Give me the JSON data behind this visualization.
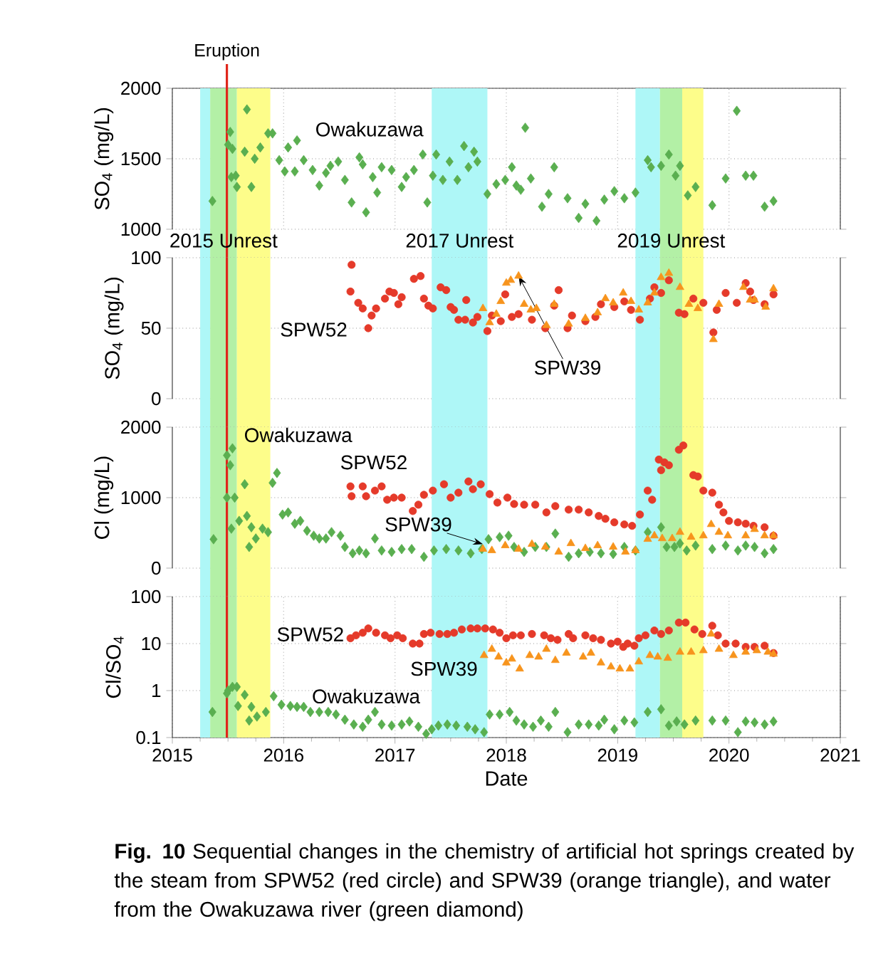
{
  "chart_data": [
    {
      "type": "scatter",
      "ylabel": "SO$_{4}$ (mg/L)",
      "xlim": [
        2015,
        2021
      ],
      "xticks": [
        2015,
        2016,
        2017,
        2018,
        2019,
        2020,
        2021
      ],
      "ylim": [
        1000,
        2000
      ],
      "yticks": [
        1000,
        1500,
        2000
      ],
      "grid": true,
      "tick_labels": "y",
      "bands": [
        {
          "axis": "x",
          "from": 2015.25,
          "to": 2015.34,
          "color": "#aef7f7"
        },
        {
          "axis": "x",
          "from": 2015.34,
          "to": 2015.58,
          "color": "#b3f0a6"
        },
        {
          "axis": "x",
          "from": 2015.58,
          "to": 2015.88,
          "color": "#fdfd8a"
        },
        {
          "axis": "x",
          "from": 2017.33,
          "to": 2017.83,
          "color": "#aef7f7"
        },
        {
          "axis": "x",
          "from": 2019.16,
          "to": 2019.38,
          "color": "#aef7f7"
        },
        {
          "axis": "x",
          "from": 2019.38,
          "to": 2019.58,
          "color": "#b3f0a6"
        },
        {
          "axis": "x",
          "from": 2019.58,
          "to": 2019.77,
          "color": "#fdfd8a"
        }
      ],
      "ref_lines": [
        {
          "axis": "x",
          "value": 2015.49,
          "label": "Eruption",
          "color": "#e0261b"
        }
      ],
      "series": [
        {
          "name": "Owakuzawa",
          "color": "#5aaf50",
          "marker": "diamond",
          "x": [
            2015.36,
            2015.52,
            2015.5,
            2015.54,
            2015.53,
            2015.58,
            2015.57,
            2015.67,
            2015.65,
            2015.74,
            2015.71,
            2015.79,
            2015.86,
            2015.9,
            2015.96,
            2016.01,
            2016.04,
            2016.12,
            2016.1,
            2016.18,
            2016.26,
            2016.32,
            2016.38,
            2016.42,
            2016.49,
            2016.55,
            2016.61,
            2016.68,
            2016.71,
            2016.74,
            2016.8,
            2016.84,
            2016.88,
            2016.97,
            2017.06,
            2017.1,
            2017.17,
            2017.25,
            2017.29,
            2017.34,
            2017.37,
            2017.43,
            2017.49,
            2017.56,
            2017.62,
            2017.66,
            2017.71,
            2017.74,
            2017.83,
            2017.91,
            2017.99,
            2018.05,
            2018.09,
            2018.17,
            2018.13,
            2018.22,
            2018.32,
            2018.38,
            2018.43,
            2018.55,
            2018.65,
            2018.71,
            2018.81,
            2018.88,
            2018.97,
            2019.06,
            2019.16,
            2019.27,
            2019.3,
            2019.39,
            2019.46,
            2019.52,
            2019.56,
            2019.63,
            2019.7,
            2019.85,
            2019.97,
            2020.07,
            2020.15,
            2020.22,
            2020.32,
            2020.4
          ],
          "values": [
            1200,
            1690,
            1600,
            1570,
            1370,
            1300,
            1380,
            1850,
            1550,
            1500,
            1300,
            1580,
            1680,
            1680,
            1490,
            1410,
            1580,
            1630,
            1410,
            1490,
            1420,
            1310,
            1400,
            1450,
            1480,
            1350,
            1190,
            1510,
            1460,
            1120,
            1370,
            1260,
            1440,
            1420,
            1300,
            1370,
            1420,
            1530,
            1190,
            1380,
            1530,
            1350,
            1480,
            1350,
            1590,
            1440,
            1550,
            1480,
            1250,
            1320,
            1350,
            1440,
            1310,
            1720,
            1280,
            1360,
            1160,
            1250,
            1440,
            1220,
            1080,
            1180,
            1060,
            1210,
            1270,
            1220,
            1260,
            1490,
            1440,
            1450,
            1530,
            1380,
            1450,
            1240,
            1300,
            1170,
            1360,
            1840,
            1380,
            1380,
            1160,
            1200
          ]
        }
      ]
    },
    {
      "type": "scatter",
      "ylabel": "SO$_{4}$ (mg/L)",
      "xlim": [
        2015,
        2021
      ],
      "xticks": [
        2015,
        2016,
        2017,
        2018,
        2019,
        2020,
        2021
      ],
      "ylim": [
        0,
        100
      ],
      "yticks": [
        0,
        50,
        100
      ],
      "grid": true,
      "tick_labels": "y",
      "bands": [
        {
          "axis": "x",
          "from": 2015.25,
          "to": 2015.34,
          "color": "#aef7f7"
        },
        {
          "axis": "x",
          "from": 2015.34,
          "to": 2015.58,
          "color": "#b3f0a6",
          "label": "2015 Unrest"
        },
        {
          "axis": "x",
          "from": 2015.58,
          "to": 2015.88,
          "color": "#fdfd8a"
        },
        {
          "axis": "x",
          "from": 2017.33,
          "to": 2017.83,
          "color": "#aef7f7",
          "label": "2017 Unrest"
        },
        {
          "axis": "x",
          "from": 2019.16,
          "to": 2019.38,
          "color": "#aef7f7"
        },
        {
          "axis": "x",
          "from": 2019.38,
          "to": 2019.58,
          "color": "#b3f0a6",
          "label": "2019 Unrest"
        },
        {
          "axis": "x",
          "from": 2019.58,
          "to": 2019.77,
          "color": "#fdfd8a"
        }
      ],
      "ref_lines": [
        {
          "axis": "x",
          "value": 2015.49,
          "color": "#e0261b"
        }
      ],
      "series": [
        {
          "name": "SPW52",
          "color": "#e53a2a",
          "marker": "circle",
          "x": [
            2016.61,
            2016.6,
            2016.67,
            2016.71,
            2016.76,
            2016.79,
            2016.83,
            2016.91,
            2016.95,
            2016.99,
            2017.03,
            2017.06,
            2017.17,
            2017.23,
            2017.26,
            2017.3,
            2017.34,
            2017.41,
            2017.46,
            2017.5,
            2017.53,
            2017.57,
            2017.64,
            2017.63,
            2017.7,
            2017.74,
            2017.83,
            2017.87,
            2017.95,
            2017.99,
            2018.05,
            2018.11,
            2018.23,
            2018.35,
            2018.43,
            2018.47,
            2018.55,
            2018.59,
            2018.71,
            2018.8,
            2018.85,
            2018.97,
            2019.06,
            2019.12,
            2019.2,
            2019.29,
            2019.33,
            2019.39,
            2019.46,
            2019.55,
            2019.6,
            2019.68,
            2019.77,
            2019.86,
            2019.89,
            2019.97,
            2020.07,
            2020.15,
            2020.19,
            2020.22,
            2020.32,
            2020.4
          ],
          "values": [
            95,
            76,
            68,
            64,
            50,
            59,
            64,
            71,
            76,
            75,
            67,
            72,
            85,
            87,
            71,
            66,
            64,
            79,
            77,
            65,
            63,
            56,
            70,
            56,
            54,
            58,
            48,
            59,
            55,
            74,
            58,
            60,
            56,
            50,
            66,
            77,
            50,
            59,
            55,
            58,
            67,
            65,
            69,
            63,
            56,
            71,
            79,
            75,
            84,
            61,
            60,
            71,
            68,
            47,
            63,
            75,
            68,
            82,
            76,
            70,
            67,
            74
          ]
        },
        {
          "name": "SPW39",
          "color": "#f7941d",
          "marker": "triangle",
          "x": [
            2017.79,
            2017.85,
            2017.91,
            2017.95,
            2018.0,
            2018.04,
            2018.11,
            2018.16,
            2018.22,
            2018.27,
            2018.36,
            2018.43,
            2018.56,
            2018.71,
            2018.82,
            2018.89,
            2018.96,
            2019.05,
            2019.12,
            2019.19,
            2019.27,
            2019.33,
            2019.39,
            2019.46,
            2019.56,
            2019.64,
            2019.72,
            2019.86,
            2019.91,
            2020.13,
            2020.19,
            2020.23,
            2020.33,
            2020.4
          ],
          "values": [
            64,
            54,
            60,
            69,
            82,
            84,
            87,
            67,
            63,
            64,
            52,
            67,
            53,
            57,
            61,
            71,
            68,
            75,
            69,
            63,
            68,
            75,
            86,
            89,
            79,
            67,
            64,
            42,
            67,
            79,
            70,
            70,
            65,
            78
          ]
        }
      ]
    },
    {
      "type": "scatter",
      "ylabel": "Cl (mg/L)",
      "xlim": [
        2015,
        2021
      ],
      "xticks": [
        2015,
        2016,
        2017,
        2018,
        2019,
        2020,
        2021
      ],
      "ylim": [
        0,
        2000
      ],
      "yticks": [
        0,
        1000,
        2000
      ],
      "grid": true,
      "tick_labels": "y",
      "bands": [
        {
          "axis": "x",
          "from": 2015.25,
          "to": 2015.34,
          "color": "#aef7f7"
        },
        {
          "axis": "x",
          "from": 2015.34,
          "to": 2015.58,
          "color": "#b3f0a6"
        },
        {
          "axis": "x",
          "from": 2015.58,
          "to": 2015.88,
          "color": "#fdfd8a"
        },
        {
          "axis": "x",
          "from": 2017.33,
          "to": 2017.83,
          "color": "#aef7f7"
        },
        {
          "axis": "x",
          "from": 2019.16,
          "to": 2019.38,
          "color": "#aef7f7"
        },
        {
          "axis": "x",
          "from": 2019.38,
          "to": 2019.58,
          "color": "#b3f0a6"
        },
        {
          "axis": "x",
          "from": 2019.58,
          "to": 2019.77,
          "color": "#fdfd8a"
        }
      ],
      "ref_lines": [
        {
          "axis": "x",
          "value": 2015.49,
          "color": "#e0261b"
        }
      ],
      "series": [
        {
          "name": "Owakuzawa",
          "color": "#5aaf50",
          "marker": "diamond",
          "x": [
            2015.37,
            2015.49,
            2015.52,
            2015.54,
            2015.49,
            2015.56,
            2015.53,
            2015.6,
            2015.65,
            2015.67,
            2015.71,
            2015.69,
            2015.75,
            2015.81,
            2015.86,
            2015.9,
            2015.94,
            2015.99,
            2016.04,
            2016.1,
            2016.15,
            2016.21,
            2016.27,
            2016.32,
            2016.38,
            2016.43,
            2016.51,
            2016.55,
            2016.62,
            2016.68,
            2016.74,
            2016.82,
            2016.88,
            2016.97,
            2017.06,
            2017.15,
            2017.26,
            2017.35,
            2017.46,
            2017.57,
            2017.68,
            2017.78,
            2017.84,
            2017.94,
            2018.02,
            2018.07,
            2018.16,
            2018.26,
            2018.36,
            2018.44,
            2018.56,
            2018.65,
            2018.75,
            2018.85,
            2018.96,
            2019.06,
            2019.16,
            2019.27,
            2019.39,
            2019.44,
            2019.51,
            2019.56,
            2019.62,
            2019.7,
            2019.85,
            2019.97,
            2020.08,
            2020.15,
            2020.23,
            2020.32,
            2020.4
          ],
          "values": [
            410,
            1600,
            1460,
            1700,
            1000,
            1000,
            560,
            670,
            1190,
            740,
            580,
            300,
            420,
            560,
            510,
            1210,
            1350,
            760,
            790,
            630,
            670,
            530,
            460,
            420,
            420,
            510,
            460,
            300,
            210,
            250,
            210,
            420,
            250,
            230,
            270,
            270,
            160,
            250,
            270,
            250,
            210,
            270,
            410,
            440,
            460,
            300,
            230,
            300,
            300,
            490,
            160,
            210,
            230,
            210,
            200,
            300,
            250,
            510,
            580,
            300,
            300,
            350,
            250,
            320,
            270,
            320,
            250,
            320,
            300,
            210,
            270
          ]
        },
        {
          "name": "SPW52",
          "color": "#e53a2a",
          "marker": "circle",
          "x": [
            2016.6,
            2016.61,
            2016.71,
            2016.74,
            2016.82,
            2016.88,
            2016.93,
            2016.99,
            2017.06,
            2017.16,
            2017.21,
            2017.26,
            2017.34,
            2017.44,
            2017.5,
            2017.57,
            2017.66,
            2017.7,
            2017.77,
            2017.85,
            2017.92,
            2018.01,
            2018.07,
            2018.16,
            2018.26,
            2018.36,
            2018.44,
            2018.56,
            2018.65,
            2018.74,
            2018.83,
            2018.89,
            2018.97,
            2019.06,
            2019.13,
            2019.2,
            2019.27,
            2019.31,
            2019.37,
            2019.39,
            2019.42,
            2019.46,
            2019.55,
            2019.59,
            2019.68,
            2019.72,
            2019.77,
            2019.85,
            2019.91,
            2019.95,
            2020.0,
            2020.08,
            2020.15,
            2020.22,
            2020.32,
            2020.4
          ],
          "values": [
            1160,
            1020,
            1160,
            1020,
            1100,
            1160,
            970,
            1000,
            1000,
            810,
            900,
            1040,
            1100,
            1190,
            1000,
            1070,
            1230,
            1120,
            1190,
            1050,
            930,
            1000,
            910,
            900,
            900,
            790,
            880,
            830,
            830,
            790,
            740,
            700,
            650,
            620,
            600,
            760,
            1100,
            970,
            1540,
            1390,
            1500,
            1460,
            1680,
            1740,
            1320,
            1300,
            1100,
            1070,
            900,
            790,
            670,
            650,
            630,
            600,
            580,
            460
          ]
        },
        {
          "name": "SPW39",
          "color": "#f7941d",
          "marker": "triangle",
          "x": [
            2017.79,
            2017.87,
            2017.99,
            2018.11,
            2018.23,
            2018.35,
            2018.47,
            2018.58,
            2018.71,
            2018.82,
            2018.96,
            2019.07,
            2019.16,
            2019.27,
            2019.33,
            2019.4,
            2019.49,
            2019.56,
            2019.66,
            2019.77,
            2019.84,
            2019.91,
            2019.99,
            2020.15,
            2020.23,
            2020.32,
            2020.4
          ],
          "values": [
            270,
            250,
            320,
            270,
            340,
            300,
            230,
            350,
            280,
            320,
            300,
            230,
            250,
            410,
            460,
            420,
            420,
            510,
            440,
            460,
            620,
            510,
            460,
            460,
            550,
            460,
            460
          ]
        }
      ]
    },
    {
      "type": "scatter",
      "ylabel": "Cl/SO$_{4}$",
      "xlabel": "Date",
      "log": true,
      "xlim": [
        2015,
        2021
      ],
      "xticks": [
        2015,
        2016,
        2017,
        2018,
        2019,
        2020,
        2021
      ],
      "ylim": [
        0.1,
        100
      ],
      "yticks": [
        0.1,
        1,
        10,
        100
      ],
      "grid": true,
      "bands": [
        {
          "axis": "x",
          "from": 2015.25,
          "to": 2015.34,
          "color": "#aef7f7"
        },
        {
          "axis": "x",
          "from": 2015.34,
          "to": 2015.58,
          "color": "#b3f0a6"
        },
        {
          "axis": "x",
          "from": 2015.58,
          "to": 2015.88,
          "color": "#fdfd8a"
        },
        {
          "axis": "x",
          "from": 2017.33,
          "to": 2017.83,
          "color": "#aef7f7"
        },
        {
          "axis": "x",
          "from": 2019.16,
          "to": 2019.38,
          "color": "#aef7f7"
        },
        {
          "axis": "x",
          "from": 2019.38,
          "to": 2019.58,
          "color": "#b3f0a6"
        },
        {
          "axis": "x",
          "from": 2019.58,
          "to": 2019.77,
          "color": "#fdfd8a"
        }
      ],
      "ref_lines": [
        {
          "axis": "x",
          "value": 2015.49,
          "color": "#e0261b"
        }
      ],
      "annotations": [
        "**Fig. 10** Sequential changes in the chemistry of artificial hot springs created by the steam from SPW52 (red circle) and SPW39 (orange triangle), and water from the Owakuzawa river (green diamond)"
      ],
      "series": [
        {
          "name": "SPW52",
          "color": "#e53a2a",
          "marker": "circle",
          "x": [
            2016.6,
            2016.65,
            2016.71,
            2016.76,
            2016.83,
            2016.91,
            2016.96,
            2017.02,
            2017.07,
            2017.16,
            2017.22,
            2017.26,
            2017.32,
            2017.4,
            2017.47,
            2017.53,
            2017.6,
            2017.68,
            2017.74,
            2017.81,
            2017.88,
            2017.94,
            2018.0,
            2018.06,
            2018.13,
            2018.23,
            2018.34,
            2018.4,
            2018.46,
            2018.56,
            2018.6,
            2018.71,
            2018.78,
            2018.85,
            2018.94,
            2019.0,
            2019.05,
            2019.09,
            2019.15,
            2019.19,
            2019.25,
            2019.33,
            2019.39,
            2019.46,
            2019.55,
            2019.61,
            2019.69,
            2019.76,
            2019.85,
            2019.9,
            2019.97,
            2020.06,
            2020.15,
            2020.23,
            2020.32,
            2020.4
          ],
          "values": [
            13,
            15,
            17,
            21,
            17,
            15,
            13,
            15,
            13,
            10,
            10,
            16,
            17,
            16,
            16,
            17,
            20,
            21,
            21,
            21,
            20,
            17,
            13,
            15,
            15,
            16,
            15,
            13,
            12,
            16,
            13,
            15,
            13,
            12,
            10,
            11,
            8.5,
            10,
            9,
            13,
            15,
            19,
            16,
            19,
            28,
            28,
            20,
            16,
            24,
            15,
            10,
            10,
            8.5,
            8.5,
            9,
            6.3
          ]
        },
        {
          "name": "SPW39",
          "color": "#f7941d",
          "marker": "triangle",
          "x": [
            2017.8,
            2017.87,
            2017.93,
            2018.0,
            2018.05,
            2018.12,
            2018.21,
            2018.29,
            2018.36,
            2018.44,
            2018.54,
            2018.69,
            2018.76,
            2018.85,
            2018.94,
            2019.02,
            2019.11,
            2019.19,
            2019.29,
            2019.36,
            2019.45,
            2019.56,
            2019.66,
            2019.77,
            2019.84,
            2019.91,
            2020.04,
            2020.15,
            2020.25,
            2020.35,
            2020.4
          ],
          "values": [
            5.6,
            7.6,
            5.2,
            3.9,
            4.7,
            2.9,
            5.6,
            5.2,
            7.6,
            4.4,
            6.3,
            5.2,
            6.3,
            3.9,
            3.2,
            2.9,
            2.9,
            4.1,
            5.6,
            5.2,
            4.9,
            6.6,
            6.6,
            7.1,
            16,
            7.6,
            5.6,
            6.6,
            7.1,
            6.6,
            6.0
          ]
        },
        {
          "name": "Owakuzawa",
          "color": "#5aaf50",
          "marker": "diamond",
          "x": [
            2015.36,
            2015.49,
            2015.5,
            2015.54,
            2015.58,
            2015.59,
            2015.65,
            2015.71,
            2015.69,
            2015.76,
            2015.84,
            2015.91,
            2015.98,
            2016.06,
            2016.12,
            2016.18,
            2016.24,
            2016.32,
            2016.4,
            2016.47,
            2016.55,
            2016.63,
            2016.71,
            2016.76,
            2016.82,
            2016.88,
            2016.97,
            2017.06,
            2017.13,
            2017.21,
            2017.28,
            2017.33,
            2017.39,
            2017.47,
            2017.55,
            2017.65,
            2017.72,
            2017.8,
            2017.85,
            2017.94,
            2018.03,
            2018.09,
            2018.16,
            2018.24,
            2018.31,
            2018.38,
            2018.44,
            2018.55,
            2018.65,
            2018.74,
            2018.83,
            2018.88,
            2018.97,
            2019.06,
            2019.15,
            2019.27,
            2019.39,
            2019.46,
            2019.53,
            2019.6,
            2019.7,
            2019.85,
            2019.97,
            2020.08,
            2020.15,
            2020.23,
            2020.32,
            2020.4
          ],
          "values": [
            0.35,
            0.87,
            1.0,
            1.2,
            1.2,
            0.47,
            0.81,
            0.45,
            0.23,
            0.28,
            0.35,
            0.76,
            0.5,
            0.47,
            0.45,
            0.45,
            0.35,
            0.35,
            0.35,
            0.31,
            0.24,
            0.19,
            0.17,
            0.24,
            0.35,
            0.19,
            0.18,
            0.19,
            0.22,
            0.17,
            0.12,
            0.15,
            0.18,
            0.19,
            0.18,
            0.17,
            0.15,
            0.13,
            0.31,
            0.31,
            0.35,
            0.23,
            0.19,
            0.17,
            0.23,
            0.17,
            0.35,
            0.13,
            0.19,
            0.19,
            0.18,
            0.24,
            0.15,
            0.23,
            0.21,
            0.35,
            0.4,
            0.18,
            0.22,
            0.19,
            0.23,
            0.23,
            0.23,
            0.13,
            0.22,
            0.21,
            0.19,
            0.22
          ]
        }
      ]
    }
  ]
}
